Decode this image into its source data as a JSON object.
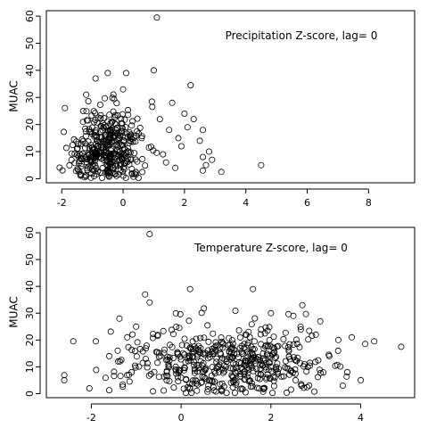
{
  "chart_data": [
    {
      "type": "scatter",
      "annotation": "Precipitation Z-score, lag= 0",
      "xlabel": "",
      "ylabel": "MUAC",
      "xlim": [
        -2.5,
        9.5
      ],
      "ylim": [
        -1.5,
        62
      ],
      "xticks": [
        -2,
        0,
        2,
        4,
        6,
        8
      ],
      "yticks": [
        0,
        10,
        20,
        30,
        40,
        50,
        60
      ],
      "grid": false,
      "cluster": {
        "n": 400,
        "x_center": -0.45,
        "x_spread": 0.6,
        "y_center": 11,
        "y_spread": 8,
        "seed": 11
      },
      "points": [
        [
          1.1,
          59.5
        ],
        [
          2.2,
          34.5
        ],
        [
          1.0,
          40
        ],
        [
          0.1,
          39
        ],
        [
          -0.5,
          39
        ],
        [
          -0.9,
          37
        ],
        [
          1.6,
          28
        ],
        [
          2.0,
          24
        ],
        [
          2.3,
          22
        ],
        [
          2.1,
          19
        ],
        [
          2.6,
          18
        ],
        [
          2.5,
          14
        ],
        [
          2.8,
          10
        ],
        [
          2.6,
          8
        ],
        [
          2.9,
          7
        ],
        [
          2.7,
          5
        ],
        [
          2.6,
          3
        ],
        [
          3.2,
          2.5
        ],
        [
          4.5,
          5
        ],
        [
          1.9,
          12
        ],
        [
          1.8,
          15
        ],
        [
          1.5,
          18
        ],
        [
          1.3,
          9
        ],
        [
          1.2,
          22
        ],
        [
          -1.6,
          14.5
        ],
        [
          -1.5,
          11
        ],
        [
          -1.3,
          25
        ],
        [
          -1.2,
          31
        ],
        [
          1.7,
          4
        ],
        [
          1.4,
          6
        ]
      ]
    },
    {
      "type": "scatter",
      "annotation": "Temperature Z-score, lag= 0",
      "xlabel": "",
      "ylabel": "MUAC",
      "xlim": [
        -3.0,
        5.2
      ],
      "ylim": [
        -1.5,
        62
      ],
      "xticks": [
        -2,
        0,
        2,
        4
      ],
      "yticks": [
        0,
        10,
        20,
        30,
        40,
        50,
        60
      ],
      "grid": false,
      "cluster": {
        "n": 500,
        "x_center": 1.0,
        "x_spread": 1.05,
        "y_center": 11,
        "y_spread": 7.5,
        "seed": 23
      },
      "points": [
        [
          -0.7,
          59.5
        ],
        [
          -0.8,
          37
        ],
        [
          -0.7,
          34
        ],
        [
          0.2,
          39
        ],
        [
          1.6,
          39
        ],
        [
          -2.6,
          5
        ],
        [
          -2.4,
          19.5
        ],
        [
          -1.9,
          19.5
        ],
        [
          -1.6,
          14
        ],
        [
          -1.4,
          12
        ],
        [
          -1.2,
          21
        ],
        [
          -1.0,
          25
        ],
        [
          -1.1,
          8
        ],
        [
          3.8,
          21
        ],
        [
          4.1,
          18.5
        ],
        [
          4.3,
          19.5
        ],
        [
          4.9,
          17.5
        ],
        [
          3.6,
          3
        ],
        [
          3.7,
          8
        ],
        [
          4.0,
          5
        ],
        [
          3.3,
          14
        ],
        [
          3.5,
          20
        ],
        [
          2.7,
          33
        ],
        [
          3.1,
          27
        ],
        [
          2.5,
          29
        ],
        [
          3.0,
          22
        ]
      ]
    }
  ]
}
